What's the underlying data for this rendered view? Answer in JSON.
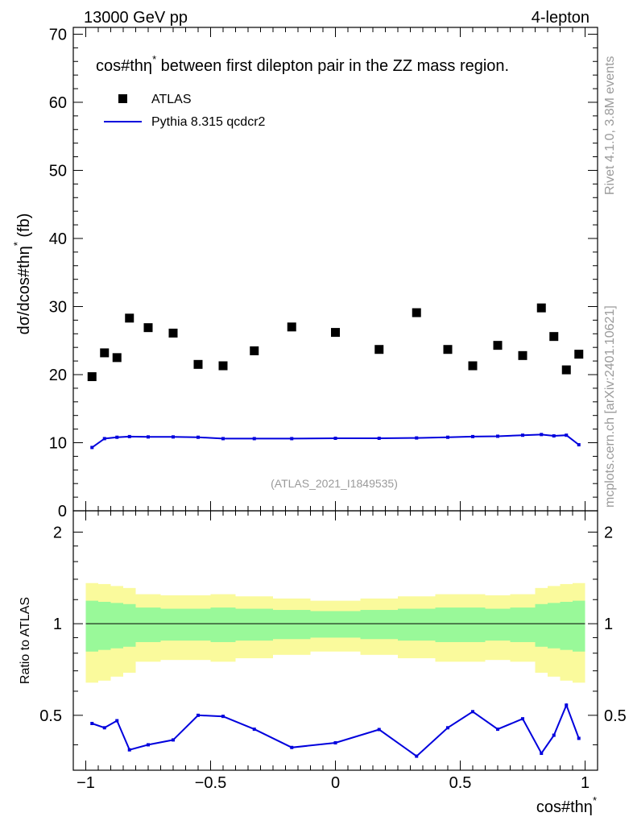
{
  "header": {
    "energy": "13000 GeV pp",
    "channel": "4-lepton"
  },
  "side_labels": {
    "rivet": "Rivet 4.1.0,  3.8M events",
    "mcplots": "mcplots.cern.ch [arXiv:2401.10621]"
  },
  "colors": {
    "data": "#000000",
    "mc": "#0000dd",
    "band_inner": "#99f999",
    "band_outer": "#fafa9c"
  },
  "chart_data": [
    {
      "type": "scatter",
      "title": "cos#thη* between first dilepton pair in the ZZ mass region.",
      "title_main": "cos#thη",
      "title_sup": "*",
      "title_rest": " between first dilepton pair in the ZZ mass region.",
      "ylabel": "dσ/dcos#thη* (fb)",
      "ylabel_main": "dσ/dcos#thη",
      "ylabel_sup": "*",
      "ylabel_unit": " (fb)",
      "xlim": [
        -1.05,
        1.05
      ],
      "ylim": [
        0,
        71
      ],
      "y_ticks": [
        "0",
        "10",
        "20",
        "30",
        "40",
        "50",
        "60",
        "70"
      ],
      "x_ticks": [
        "−1",
        "−0.5",
        "0",
        "0.5",
        "1"
      ],
      "analysis_label": "(ATLAS_2021_I1849535)",
      "legend": [
        {
          "name": "ATLAS",
          "marker": "square"
        },
        {
          "name": "Pythia 8.315 qcdcr2",
          "marker": "line"
        }
      ],
      "series": [
        {
          "name": "ATLAS",
          "x": [
            -0.975,
            -0.925,
            -0.875,
            -0.825,
            -0.75,
            -0.65,
            -0.55,
            -0.45,
            -0.325,
            -0.175,
            0.0,
            0.175,
            0.325,
            0.45,
            0.55,
            0.65,
            0.75,
            0.825,
            0.875,
            0.925,
            0.975
          ],
          "values": [
            19.7,
            23.2,
            22.5,
            28.3,
            26.9,
            26.1,
            21.5,
            21.3,
            23.5,
            27.0,
            26.2,
            23.7,
            29.1,
            23.7,
            21.3,
            24.3,
            22.8,
            29.8,
            25.6,
            20.7,
            23.0
          ]
        },
        {
          "name": "Pythia 8.315 qcdcr2",
          "x": [
            -0.975,
            -0.925,
            -0.875,
            -0.825,
            -0.75,
            -0.65,
            -0.55,
            -0.45,
            -0.325,
            -0.175,
            0.0,
            0.175,
            0.325,
            0.45,
            0.55,
            0.65,
            0.75,
            0.825,
            0.875,
            0.925,
            0.975
          ],
          "values": [
            9.3,
            10.6,
            10.8,
            10.9,
            10.85,
            10.85,
            10.8,
            10.6,
            10.6,
            10.6,
            10.65,
            10.65,
            10.7,
            10.8,
            10.9,
            10.95,
            11.1,
            11.2,
            11.0,
            11.1,
            9.7
          ]
        }
      ]
    },
    {
      "type": "line",
      "ylabel": "Ratio to ATLAS",
      "xlabel": "cos#thη*",
      "xlabel_main": "cos#thη",
      "xlabel_sup": "*",
      "xlim": [
        -1.05,
        1.05
      ],
      "ylim": [
        0.33,
        2.35
      ],
      "y_ticks": [
        "0.5",
        "1",
        "2"
      ],
      "bins": [
        -1.0,
        -0.95,
        -0.9,
        -0.85,
        -0.8,
        -0.7,
        -0.6,
        -0.5,
        -0.4,
        -0.25,
        -0.1,
        0.1,
        0.25,
        0.4,
        0.5,
        0.6,
        0.7,
        0.8,
        0.85,
        0.9,
        0.95,
        1.0
      ],
      "band_inner": [
        0.19,
        0.18,
        0.17,
        0.16,
        0.13,
        0.12,
        0.12,
        0.13,
        0.12,
        0.11,
        0.1,
        0.11,
        0.12,
        0.13,
        0.13,
        0.12,
        0.13,
        0.16,
        0.17,
        0.18,
        0.19
      ],
      "band_outer": [
        0.36,
        0.35,
        0.33,
        0.31,
        0.25,
        0.24,
        0.24,
        0.25,
        0.23,
        0.21,
        0.19,
        0.21,
        0.23,
        0.25,
        0.25,
        0.24,
        0.25,
        0.31,
        0.33,
        0.35,
        0.36
      ],
      "series": [
        {
          "name": "Pythia 8.315 qcdcr2 / ATLAS",
          "x": [
            -0.975,
            -0.925,
            -0.875,
            -0.825,
            -0.75,
            -0.65,
            -0.55,
            -0.45,
            -0.325,
            -0.175,
            0.0,
            0.175,
            0.325,
            0.45,
            0.55,
            0.65,
            0.75,
            0.825,
            0.875,
            0.925,
            0.975
          ],
          "values": [
            0.47,
            0.455,
            0.48,
            0.385,
            0.4,
            0.415,
            0.5,
            0.496,
            0.45,
            0.392,
            0.406,
            0.449,
            0.367,
            0.455,
            0.514,
            0.45,
            0.487,
            0.375,
            0.43,
            0.54,
            0.42
          ]
        }
      ]
    }
  ]
}
